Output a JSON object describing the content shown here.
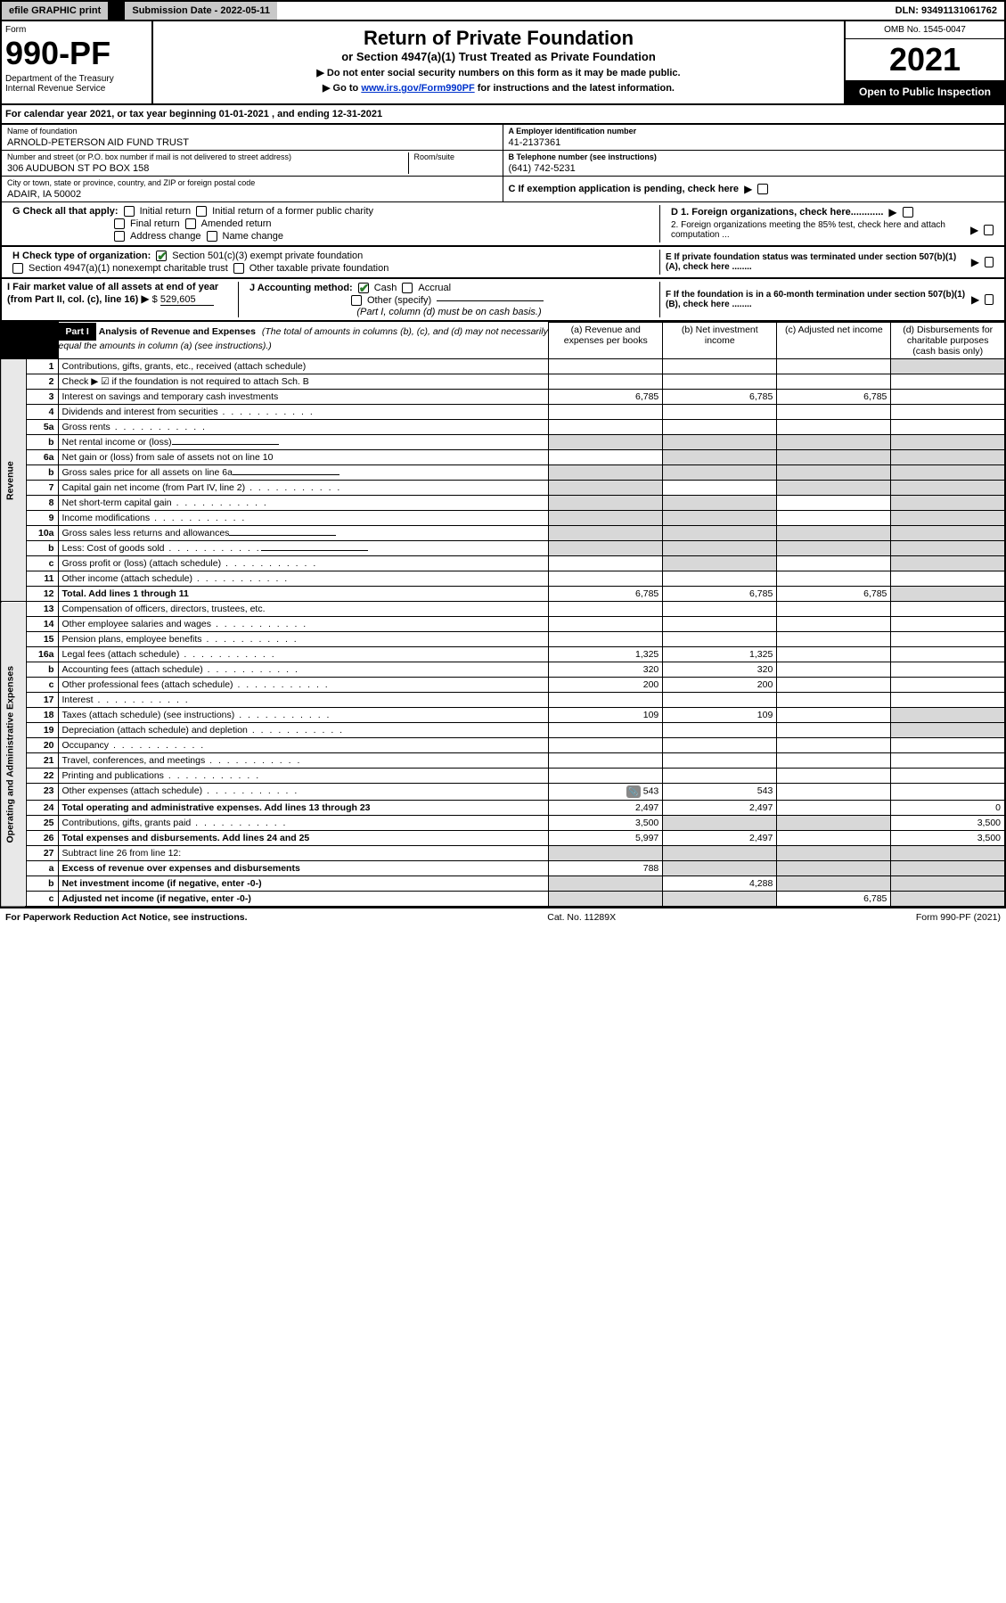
{
  "topbar": {
    "efile": "efile GRAPHIC print",
    "submission_label": "Submission Date - 2022-05-11",
    "dln": "DLN: 93491131061762"
  },
  "header": {
    "form_label": "Form",
    "form_number": "990-PF",
    "dept": "Department of the Treasury\nInternal Revenue Service",
    "title": "Return of Private Foundation",
    "subtitle": "or Section 4947(a)(1) Trust Treated as Private Foundation",
    "instr1": "▶ Do not enter social security numbers on this form as it may be made public.",
    "instr2a": "▶ Go to ",
    "instr2_link": "www.irs.gov/Form990PF",
    "instr2b": " for instructions and the latest information.",
    "omb": "OMB No. 1545-0047",
    "year": "2021",
    "open_pub": "Open to Public Inspection"
  },
  "cal_year": "For calendar year 2021, or tax year beginning 01-01-2021            , and ending 12-31-2021",
  "entity": {
    "name_label": "Name of foundation",
    "name": "ARNOLD-PETERSON AID FUND TRUST",
    "ein_label": "A Employer identification number",
    "ein": "41-2137361",
    "addr_label": "Number and street (or P.O. box number if mail is not delivered to street address)",
    "room_label": "Room/suite",
    "addr": "306 AUDUBON ST PO BOX 158",
    "tel_label": "B Telephone number (see instructions)",
    "tel": "(641) 742-5231",
    "city_label": "City or town, state or province, country, and ZIP or foreign postal code",
    "city": "ADAIR, IA  50002",
    "c_label": "C If exemption application is pending, check here",
    "g_label": "G Check all that apply:",
    "g_opts": [
      "Initial return",
      "Initial return of a former public charity",
      "Final return",
      "Amended return",
      "Address change",
      "Name change"
    ],
    "d1": "D 1. Foreign organizations, check here............",
    "d2": "2. Foreign organizations meeting the 85% test, check here and attach computation ...",
    "h_label": "H Check type of organization:",
    "h1": "Section 501(c)(3) exempt private foundation",
    "h2": "Section 4947(a)(1) nonexempt charitable trust",
    "h3": "Other taxable private foundation",
    "e_label": "E If private foundation status was terminated under section 507(b)(1)(A), check here ........",
    "i_label": "I Fair market value of all assets at end of year (from Part II, col. (c), line 16)",
    "i_val": "529,605",
    "j_label": "J Accounting method:",
    "j_cash": "Cash",
    "j_accrual": "Accrual",
    "j_other": "Other (specify)",
    "j_note": "(Part I, column (d) must be on cash basis.)",
    "f_label": "F If the foundation is in a 60-month termination under section 507(b)(1)(B), check here ........"
  },
  "part1": {
    "label": "Part I",
    "title": "Analysis of Revenue and Expenses",
    "title_note": " (The total of amounts in columns (b), (c), and (d) may not necessarily equal the amounts in column (a) (see instructions).)",
    "cols": {
      "a": "(a) Revenue and expenses per books",
      "b": "(b) Net investment income",
      "c": "(c) Adjusted net income",
      "d": "(d) Disbursements for charitable purposes (cash basis only)"
    }
  },
  "sections": {
    "revenue": "Revenue",
    "opex": "Operating and Administrative Expenses"
  },
  "rows": [
    {
      "n": "1",
      "d": "Contributions, gifts, grants, etc., received (attach schedule)",
      "a": "",
      "b": "",
      "c": "",
      "sh": [
        "d"
      ]
    },
    {
      "n": "2",
      "d": "Check ▶ ☑ if the foundation is not required to attach Sch. B",
      "span": true
    },
    {
      "n": "3",
      "d": "Interest on savings and temporary cash investments",
      "a": "6,785",
      "b": "6,785",
      "c": "6,785"
    },
    {
      "n": "4",
      "d": "Dividends and interest from securities",
      "dots": true
    },
    {
      "n": "5a",
      "d": "Gross rents",
      "dots": true
    },
    {
      "n": "b",
      "d": "Net rental income or (loss)",
      "uline": true,
      "sh": [
        "a",
        "b",
        "c",
        "d"
      ]
    },
    {
      "n": "6a",
      "d": "Net gain or (loss) from sale of assets not on line 10",
      "sh": [
        "b",
        "c",
        "d"
      ]
    },
    {
      "n": "b",
      "d": "Gross sales price for all assets on line 6a",
      "uline": true,
      "sh": [
        "a",
        "b",
        "c",
        "d"
      ]
    },
    {
      "n": "7",
      "d": "Capital gain net income (from Part IV, line 2)",
      "dots": true,
      "sh": [
        "a",
        "c",
        "d"
      ]
    },
    {
      "n": "8",
      "d": "Net short-term capital gain",
      "dots": true,
      "sh": [
        "a",
        "b",
        "d"
      ]
    },
    {
      "n": "9",
      "d": "Income modifications",
      "dots": true,
      "sh": [
        "a",
        "b",
        "d"
      ]
    },
    {
      "n": "10a",
      "d": "Gross sales less returns and allowances",
      "uline": true,
      "sh": [
        "a",
        "b",
        "c",
        "d"
      ]
    },
    {
      "n": "b",
      "d": "Less: Cost of goods sold",
      "uline": true,
      "dots": true,
      "sh": [
        "a",
        "b",
        "c",
        "d"
      ]
    },
    {
      "n": "c",
      "d": "Gross profit or (loss) (attach schedule)",
      "dots": true,
      "sh": [
        "b",
        "d"
      ]
    },
    {
      "n": "11",
      "d": "Other income (attach schedule)",
      "dots": true
    },
    {
      "n": "12",
      "d": "Total. Add lines 1 through 11",
      "dots": true,
      "bold": true,
      "a": "6,785",
      "b": "6,785",
      "c": "6,785",
      "sh": [
        "d"
      ]
    }
  ],
  "oprows": [
    {
      "n": "13",
      "d": "Compensation of officers, directors, trustees, etc."
    },
    {
      "n": "14",
      "d": "Other employee salaries and wages",
      "dots": true
    },
    {
      "n": "15",
      "d": "Pension plans, employee benefits",
      "dots": true
    },
    {
      "n": "16a",
      "d": "Legal fees (attach schedule)",
      "dots": true,
      "a": "1,325",
      "b": "1,325"
    },
    {
      "n": "b",
      "d": "Accounting fees (attach schedule)",
      "dots": true,
      "a": "320",
      "b": "320"
    },
    {
      "n": "c",
      "d": "Other professional fees (attach schedule)",
      "dots": true,
      "a": "200",
      "b": "200"
    },
    {
      "n": "17",
      "d": "Interest",
      "dots": true
    },
    {
      "n": "18",
      "d": "Taxes (attach schedule) (see instructions)",
      "dots": true,
      "a": "109",
      "b": "109",
      "sh": [
        "d"
      ]
    },
    {
      "n": "19",
      "d": "Depreciation (attach schedule) and depletion",
      "dots": true,
      "sh": [
        "d"
      ]
    },
    {
      "n": "20",
      "d": "Occupancy",
      "dots": true
    },
    {
      "n": "21",
      "d": "Travel, conferences, and meetings",
      "dots": true
    },
    {
      "n": "22",
      "d": "Printing and publications",
      "dots": true
    },
    {
      "n": "23",
      "d": "Other expenses (attach schedule)",
      "dots": true,
      "icon": true,
      "a": "543",
      "b": "543"
    },
    {
      "n": "24",
      "d": "Total operating and administrative expenses. Add lines 13 through 23",
      "dots": true,
      "bold": true,
      "a": "2,497",
      "b": "2,497",
      "dv": "0"
    },
    {
      "n": "25",
      "d": "Contributions, gifts, grants paid",
      "dots": true,
      "a": "3,500",
      "sh": [
        "b",
        "c"
      ],
      "dv": "3,500"
    },
    {
      "n": "26",
      "d": "Total expenses and disbursements. Add lines 24 and 25",
      "bold": true,
      "a": "5,997",
      "b": "2,497",
      "dv": "3,500"
    },
    {
      "n": "27",
      "d": "Subtract line 26 from line 12:",
      "sh": [
        "a",
        "b",
        "c",
        "d"
      ]
    },
    {
      "n": "a",
      "d": "Excess of revenue over expenses and disbursements",
      "bold": true,
      "a": "788",
      "sh": [
        "b",
        "c",
        "d"
      ]
    },
    {
      "n": "b",
      "d": "Net investment income (if negative, enter -0-)",
      "bold": true,
      "sh": [
        "a",
        "c",
        "d"
      ],
      "b": "4,288"
    },
    {
      "n": "c",
      "d": "Adjusted net income (if negative, enter -0-)",
      "bold": true,
      "dots": true,
      "sh": [
        "a",
        "b",
        "d"
      ],
      "c": "6,785"
    }
  ],
  "footer": {
    "left": "For Paperwork Reduction Act Notice, see instructions.",
    "mid": "Cat. No. 11289X",
    "right": "Form 990-PF (2021)"
  },
  "colors": {
    "shade": "#d8d8d8",
    "link": "#0033cc",
    "check": "#2a7a2a"
  }
}
